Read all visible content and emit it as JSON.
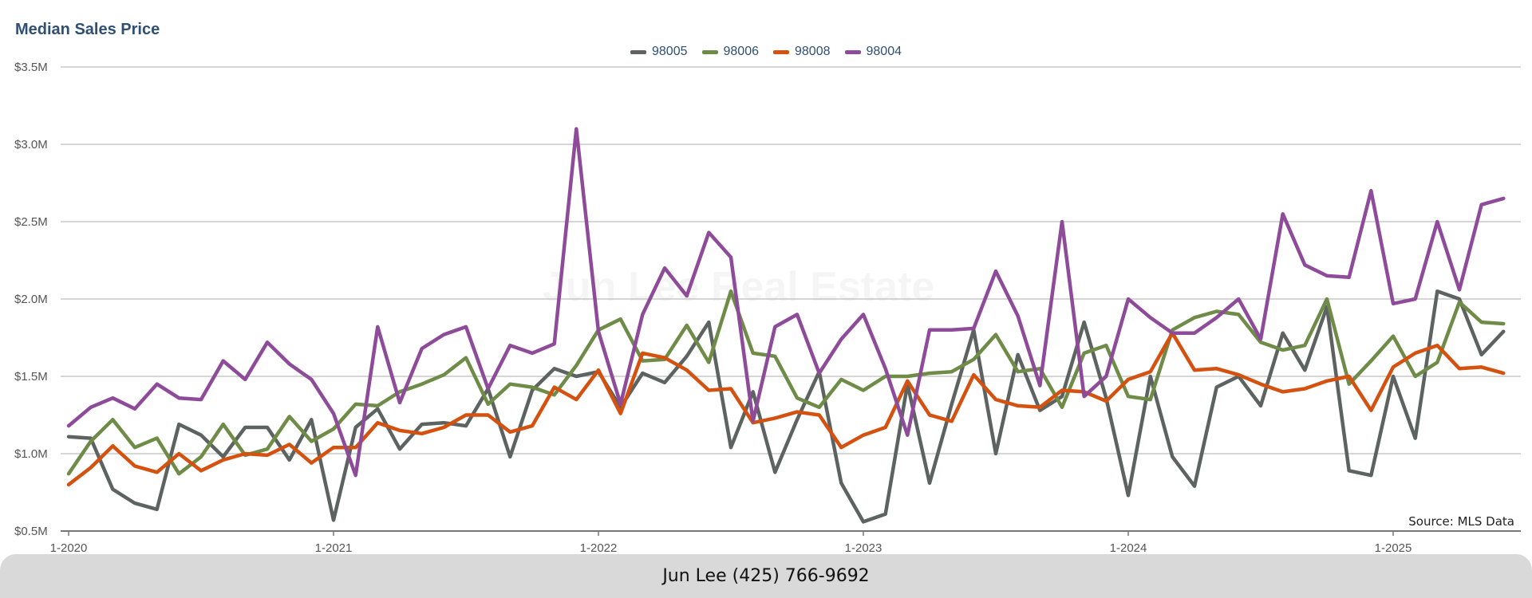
{
  "chart_data": {
    "type": "line",
    "title": "Median Sales Price",
    "watermark": "Jun Lee Real Estate",
    "source": "Source: MLS Data",
    "x_tick_labels": [
      "1-2020",
      "1-2021",
      "1-2022",
      "1-2023",
      "1-2024",
      "1-2025"
    ],
    "y_tick_labels": [
      "$0.5M",
      "$1.0M",
      "$1.5M",
      "$2.0M",
      "$2.5M",
      "$3.0M",
      "$3.5M"
    ],
    "ylim": [
      0.5,
      3.5
    ],
    "grid": true,
    "legend_position": "top-center",
    "x_start": "2020-01",
    "x_interval": "monthly",
    "series": [
      {
        "name": "98005",
        "color": "#5d6360",
        "values": [
          1.11,
          1.1,
          0.77,
          0.68,
          0.64,
          1.19,
          1.12,
          0.98,
          1.17,
          1.17,
          0.96,
          1.22,
          0.57,
          1.17,
          1.29,
          1.03,
          1.19,
          1.2,
          1.18,
          1.42,
          0.98,
          1.41,
          1.55,
          1.5,
          1.53,
          1.3,
          1.52,
          1.46,
          1.63,
          1.85,
          1.04,
          1.4,
          0.88,
          1.22,
          1.53,
          0.81,
          0.56,
          0.61,
          1.45,
          0.81,
          1.32,
          1.8,
          1.0,
          1.64,
          1.28,
          1.37,
          1.85,
          1.36,
          0.73,
          1.5,
          0.98,
          0.79,
          1.43,
          1.5,
          1.31,
          1.78,
          1.54,
          1.95,
          0.89,
          0.86,
          1.5,
          1.1,
          2.05,
          2.0,
          1.64,
          1.79
        ]
      },
      {
        "name": "98006",
        "color": "#6e8c48",
        "values": [
          0.87,
          1.08,
          1.22,
          1.04,
          1.1,
          0.87,
          0.98,
          1.19,
          0.99,
          1.03,
          1.24,
          1.08,
          1.16,
          1.32,
          1.31,
          1.4,
          1.45,
          1.51,
          1.62,
          1.32,
          1.45,
          1.43,
          1.38,
          1.57,
          1.8,
          1.87,
          1.6,
          1.61,
          1.83,
          1.59,
          2.05,
          1.65,
          1.63,
          1.36,
          1.3,
          1.48,
          1.41,
          1.5,
          1.5,
          1.52,
          1.53,
          1.61,
          1.77,
          1.53,
          1.55,
          1.3,
          1.65,
          1.7,
          1.37,
          1.35,
          1.8,
          1.88,
          1.92,
          1.9,
          1.72,
          1.67,
          1.7,
          2.0,
          1.45,
          1.6,
          1.76,
          1.5,
          1.59,
          1.98,
          1.85,
          1.84
        ]
      },
      {
        "name": "98008",
        "color": "#d4510f",
        "values": [
          0.8,
          0.91,
          1.05,
          0.92,
          0.88,
          1.0,
          0.89,
          0.96,
          1.0,
          0.99,
          1.06,
          0.94,
          1.04,
          1.04,
          1.2,
          1.15,
          1.13,
          1.17,
          1.25,
          1.25,
          1.14,
          1.18,
          1.43,
          1.35,
          1.54,
          1.26,
          1.65,
          1.62,
          1.54,
          1.41,
          1.42,
          1.2,
          1.23,
          1.27,
          1.25,
          1.04,
          1.12,
          1.17,
          1.47,
          1.25,
          1.21,
          1.51,
          1.35,
          1.31,
          1.3,
          1.41,
          1.4,
          1.34,
          1.48,
          1.53,
          1.78,
          1.54,
          1.55,
          1.51,
          1.45,
          1.4,
          1.42,
          1.47,
          1.5,
          1.28,
          1.56,
          1.65,
          1.7,
          1.55,
          1.56,
          1.52
        ]
      },
      {
        "name": "98004",
        "color": "#8e4b99",
        "values": [
          1.18,
          1.3,
          1.36,
          1.29,
          1.45,
          1.36,
          1.35,
          1.6,
          1.48,
          1.72,
          1.58,
          1.48,
          1.26,
          0.86,
          1.82,
          1.33,
          1.68,
          1.77,
          1.82,
          1.42,
          1.7,
          1.65,
          1.71,
          3.1,
          1.79,
          1.32,
          1.9,
          2.2,
          2.02,
          2.43,
          2.27,
          1.21,
          1.82,
          1.9,
          1.52,
          1.74,
          1.9,
          1.55,
          1.12,
          1.8,
          1.8,
          1.81,
          2.18,
          1.89,
          1.44,
          2.5,
          1.37,
          1.5,
          2.0,
          1.88,
          1.78,
          1.78,
          1.88,
          2.0,
          1.74,
          2.55,
          2.22,
          2.15,
          2.14,
          2.7,
          1.97,
          2.0,
          2.5,
          2.06,
          2.61,
          2.65
        ]
      }
    ]
  },
  "footer": {
    "contact": "Jun Lee (425) 766-9692"
  }
}
